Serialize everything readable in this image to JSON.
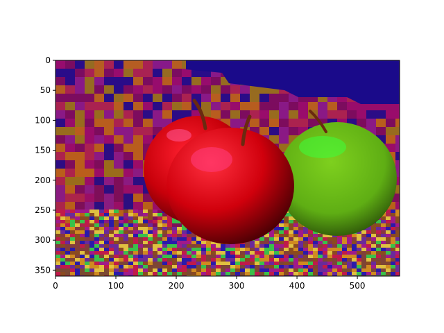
{
  "chart_data": {
    "type": "image",
    "title": "",
    "xlabel": "",
    "ylabel": "",
    "xlim": [
      0,
      570
    ],
    "ylim": [
      360,
      0
    ],
    "y_inverted": true,
    "grid": false,
    "legend": "none",
    "x_ticks": [
      {
        "value": 0,
        "label": "0"
      },
      {
        "value": 100,
        "label": "100"
      },
      {
        "value": 200,
        "label": "200"
      },
      {
        "value": 300,
        "label": "300"
      },
      {
        "value": 400,
        "label": "400"
      },
      {
        "value": 500,
        "label": "500"
      }
    ],
    "y_ticks": [
      {
        "value": 0,
        "label": "0"
      },
      {
        "value": 50,
        "label": "50"
      },
      {
        "value": 100,
        "label": "100"
      },
      {
        "value": 150,
        "label": "150"
      },
      {
        "value": 200,
        "label": "200"
      },
      {
        "value": 250,
        "label": "250"
      },
      {
        "value": 300,
        "label": "300"
      },
      {
        "value": 350,
        "label": "350"
      }
    ],
    "image_content": "false-colour image of two red apples and one green apple on a mottled surface",
    "colors": {
      "background_top": "#1a0a8a",
      "background_magenta": "#9b0a6a",
      "background_olive": "#9a7a10",
      "red_apple": "#c8000a",
      "red_apple_highlight": "#ff3a7a",
      "green_apple": "#5fae14",
      "green_apple_highlight": "#3cff3c",
      "stem": "#6a2a10"
    }
  }
}
